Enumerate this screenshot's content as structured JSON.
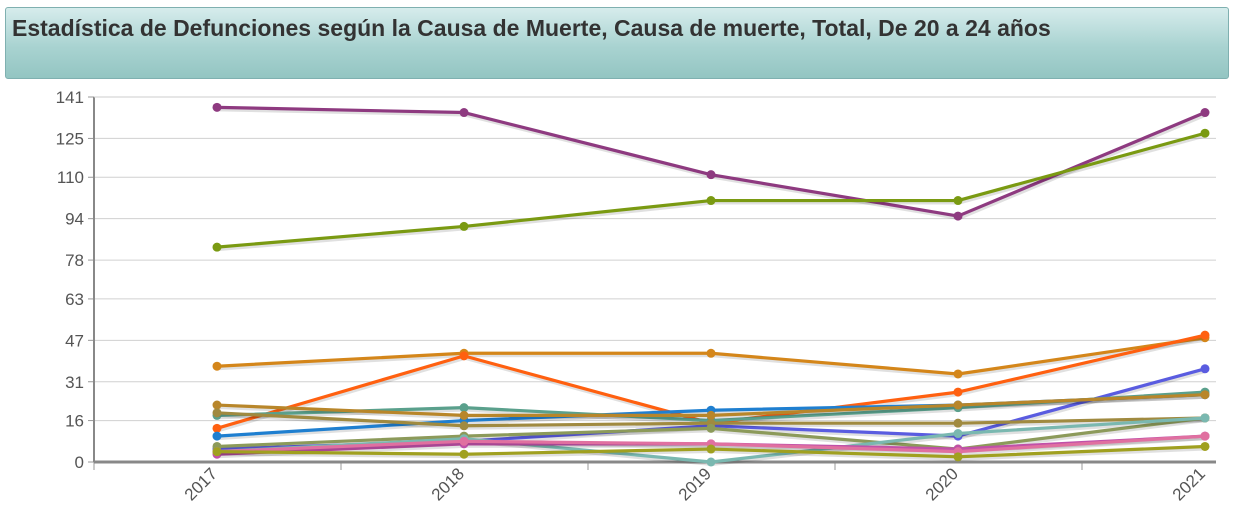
{
  "title": "Estadística de Defunciones según la Causa de Muerte, Causa de muerte, Total, De 20 a 24 años",
  "chart_data": {
    "type": "line",
    "title": "Estadística de Defunciones según la Causa de Muerte, Causa de muerte, Total, De 20 a 24 años",
    "xlabel": "",
    "ylabel": "",
    "x": [
      "2017",
      "2018",
      "2019",
      "2020",
      "2021"
    ],
    "yticks": [
      0,
      16,
      31,
      47,
      63,
      78,
      94,
      110,
      125,
      141
    ],
    "ylim": [
      0,
      141
    ],
    "grid": true,
    "legend": "none",
    "series": [
      {
        "color": "#8e3a80",
        "values": [
          137,
          135,
          111,
          95,
          135
        ]
      },
      {
        "color": "#7a9a12",
        "values": [
          83,
          91,
          101,
          101,
          127
        ]
      },
      {
        "color": "#d4861a",
        "values": [
          37,
          42,
          42,
          34,
          48
        ]
      },
      {
        "color": "#ff6010",
        "values": [
          13,
          41,
          15,
          27,
          49
        ]
      },
      {
        "color": "#1f7fd0",
        "values": [
          10,
          16,
          20,
          22,
          26
        ]
      },
      {
        "color": "#5a5ce0",
        "values": [
          5,
          8,
          14,
          10,
          36
        ]
      },
      {
        "color": "#5aa08c",
        "values": [
          18,
          21,
          16,
          21,
          27
        ]
      },
      {
        "color": "#b8862a",
        "values": [
          22,
          18,
          18,
          22,
          26
        ]
      },
      {
        "color": "#a08a40",
        "values": [
          19,
          14,
          15,
          15,
          17
        ]
      },
      {
        "color": "#8c9a5a",
        "values": [
          6,
          10,
          13,
          5,
          17
        ]
      },
      {
        "color": "#7ab8b0",
        "values": [
          4,
          9,
          0,
          11,
          17
        ]
      },
      {
        "color": "#c050a8",
        "values": [
          3,
          7,
          7,
          5,
          10
        ]
      },
      {
        "color": "#e070a0",
        "values": [
          4,
          8,
          7,
          4,
          10
        ]
      },
      {
        "color": "#a0a020",
        "values": [
          4,
          3,
          5,
          2,
          6
        ]
      }
    ]
  }
}
